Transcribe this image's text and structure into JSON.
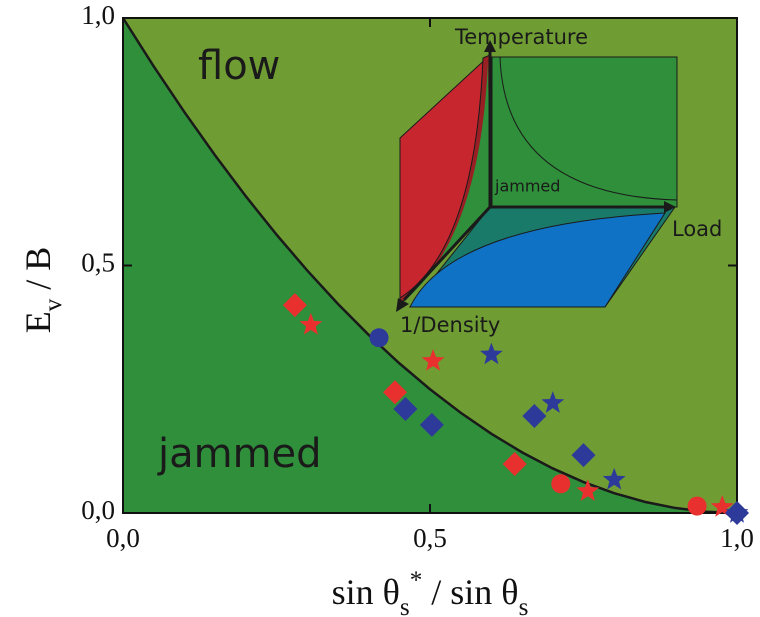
{
  "chart_data": {
    "type": "scatter",
    "ylabel": [
      {
        "text": "E"
      },
      {
        "text": "v",
        "shift": "sub"
      },
      {
        "text": " / B"
      }
    ],
    "xlabel": [
      {
        "text": "sin θ"
      },
      {
        "text": "s",
        "shift": "sub"
      },
      {
        "text": "*",
        "shift": "super"
      },
      {
        "text": " / sin θ"
      },
      {
        "text": "s",
        "shift": "sub"
      }
    ],
    "xlim": [
      0,
      1
    ],
    "ylim": [
      0,
      1
    ],
    "xticks": [
      {
        "value": 0,
        "label": "0,0"
      },
      {
        "value": 0.5,
        "label": "0,5"
      },
      {
        "value": 1,
        "label": "1,0"
      }
    ],
    "yticks": [
      {
        "value": 0,
        "label": "0,0"
      },
      {
        "value": 0.5,
        "label": "0,5"
      },
      {
        "value": 1,
        "label": "1,0"
      }
    ],
    "region_colors": {
      "above": "#6f9d33",
      "below": "#2f8f3a"
    },
    "annotations": [
      "flow",
      "jammed"
    ],
    "boundary": {
      "color": "#1a1a1a",
      "x": [
        0,
        0.05,
        0.1,
        0.15,
        0.2,
        0.25,
        0.3,
        0.35,
        0.4,
        0.45,
        0.5,
        0.55,
        0.6,
        0.65,
        0.7,
        0.75,
        0.8,
        0.85,
        0.9,
        0.95,
        1
      ],
      "values": [
        1,
        0.9025,
        0.81,
        0.7225,
        0.64,
        0.5625,
        0.49,
        0.4225,
        0.36,
        0.3025,
        0.25,
        0.2025,
        0.16,
        0.1225,
        0.09,
        0.0625,
        0.04,
        0.0225,
        0.01,
        0.0025,
        0
      ]
    },
    "series": [
      {
        "color": "#e8312f",
        "marker": "diamond",
        "x": [
          0.28,
          0.443,
          0.638
        ],
        "values": [
          0.42,
          0.244,
          0.099
        ]
      },
      {
        "color": "#e8312f",
        "marker": "star",
        "x": [
          0.306,
          0.505,
          0.757,
          0.976
        ],
        "values": [
          0.38,
          0.307,
          0.044,
          0.012
        ]
      },
      {
        "color": "#e8312f",
        "marker": "circle",
        "x": [
          0.713,
          0.935
        ],
        "values": [
          0.059,
          0.014
        ]
      },
      {
        "color": "#2d3a9a",
        "marker": "circle",
        "x": [
          0.417
        ],
        "values": [
          0.354
        ]
      },
      {
        "color": "#2d3a9a",
        "marker": "star",
        "x": [
          0.6,
          0.7,
          0.8,
          1.0
        ],
        "values": [
          0.32,
          0.222,
          0.067,
          0.0
        ]
      },
      {
        "color": "#2d3a9a",
        "marker": "diamond",
        "x": [
          0.46,
          0.503,
          0.67,
          0.75,
          1.0
        ],
        "values": [
          0.21,
          0.178,
          0.196,
          0.117,
          0.0
        ]
      }
    ],
    "inset_labels": [
      "Temperature",
      "Load",
      "1/Density",
      "jammed"
    ]
  }
}
